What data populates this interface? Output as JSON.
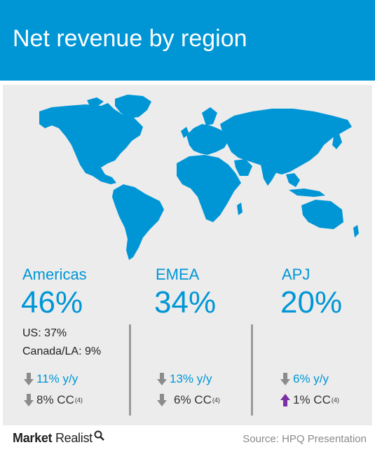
{
  "title": "Net revenue by region",
  "chart_data": {
    "type": "table",
    "regions": [
      {
        "name": "Americas",
        "share": "46%",
        "details": [
          "US: 37%",
          "Canada/LA: 9%"
        ],
        "yoy": {
          "text": "11% y/y",
          "direction": "down"
        },
        "cc": {
          "text": "8% CC",
          "note": "(4)",
          "direction": "down"
        }
      },
      {
        "name": "EMEA",
        "share": "34%",
        "details": [],
        "yoy": {
          "text": "13% y/y",
          "direction": "down"
        },
        "cc": {
          "text": "6% CC",
          "note": "(4)",
          "direction": "down"
        }
      },
      {
        "name": "APJ",
        "share": "20%",
        "details": [],
        "yoy": {
          "text": "6% y/y",
          "direction": "down"
        },
        "cc": {
          "text": "1% CC",
          "note": "(4)",
          "direction": "up"
        }
      }
    ]
  },
  "footer": {
    "brand_bold": "Market",
    "brand_light": "Realist",
    "source": "Source:  HPQ Presentation"
  },
  "colors": {
    "accent": "#0096d6",
    "down_arrow": "#8c8c8c",
    "up_arrow": "#7b2fa3",
    "panel": "#ececec"
  }
}
